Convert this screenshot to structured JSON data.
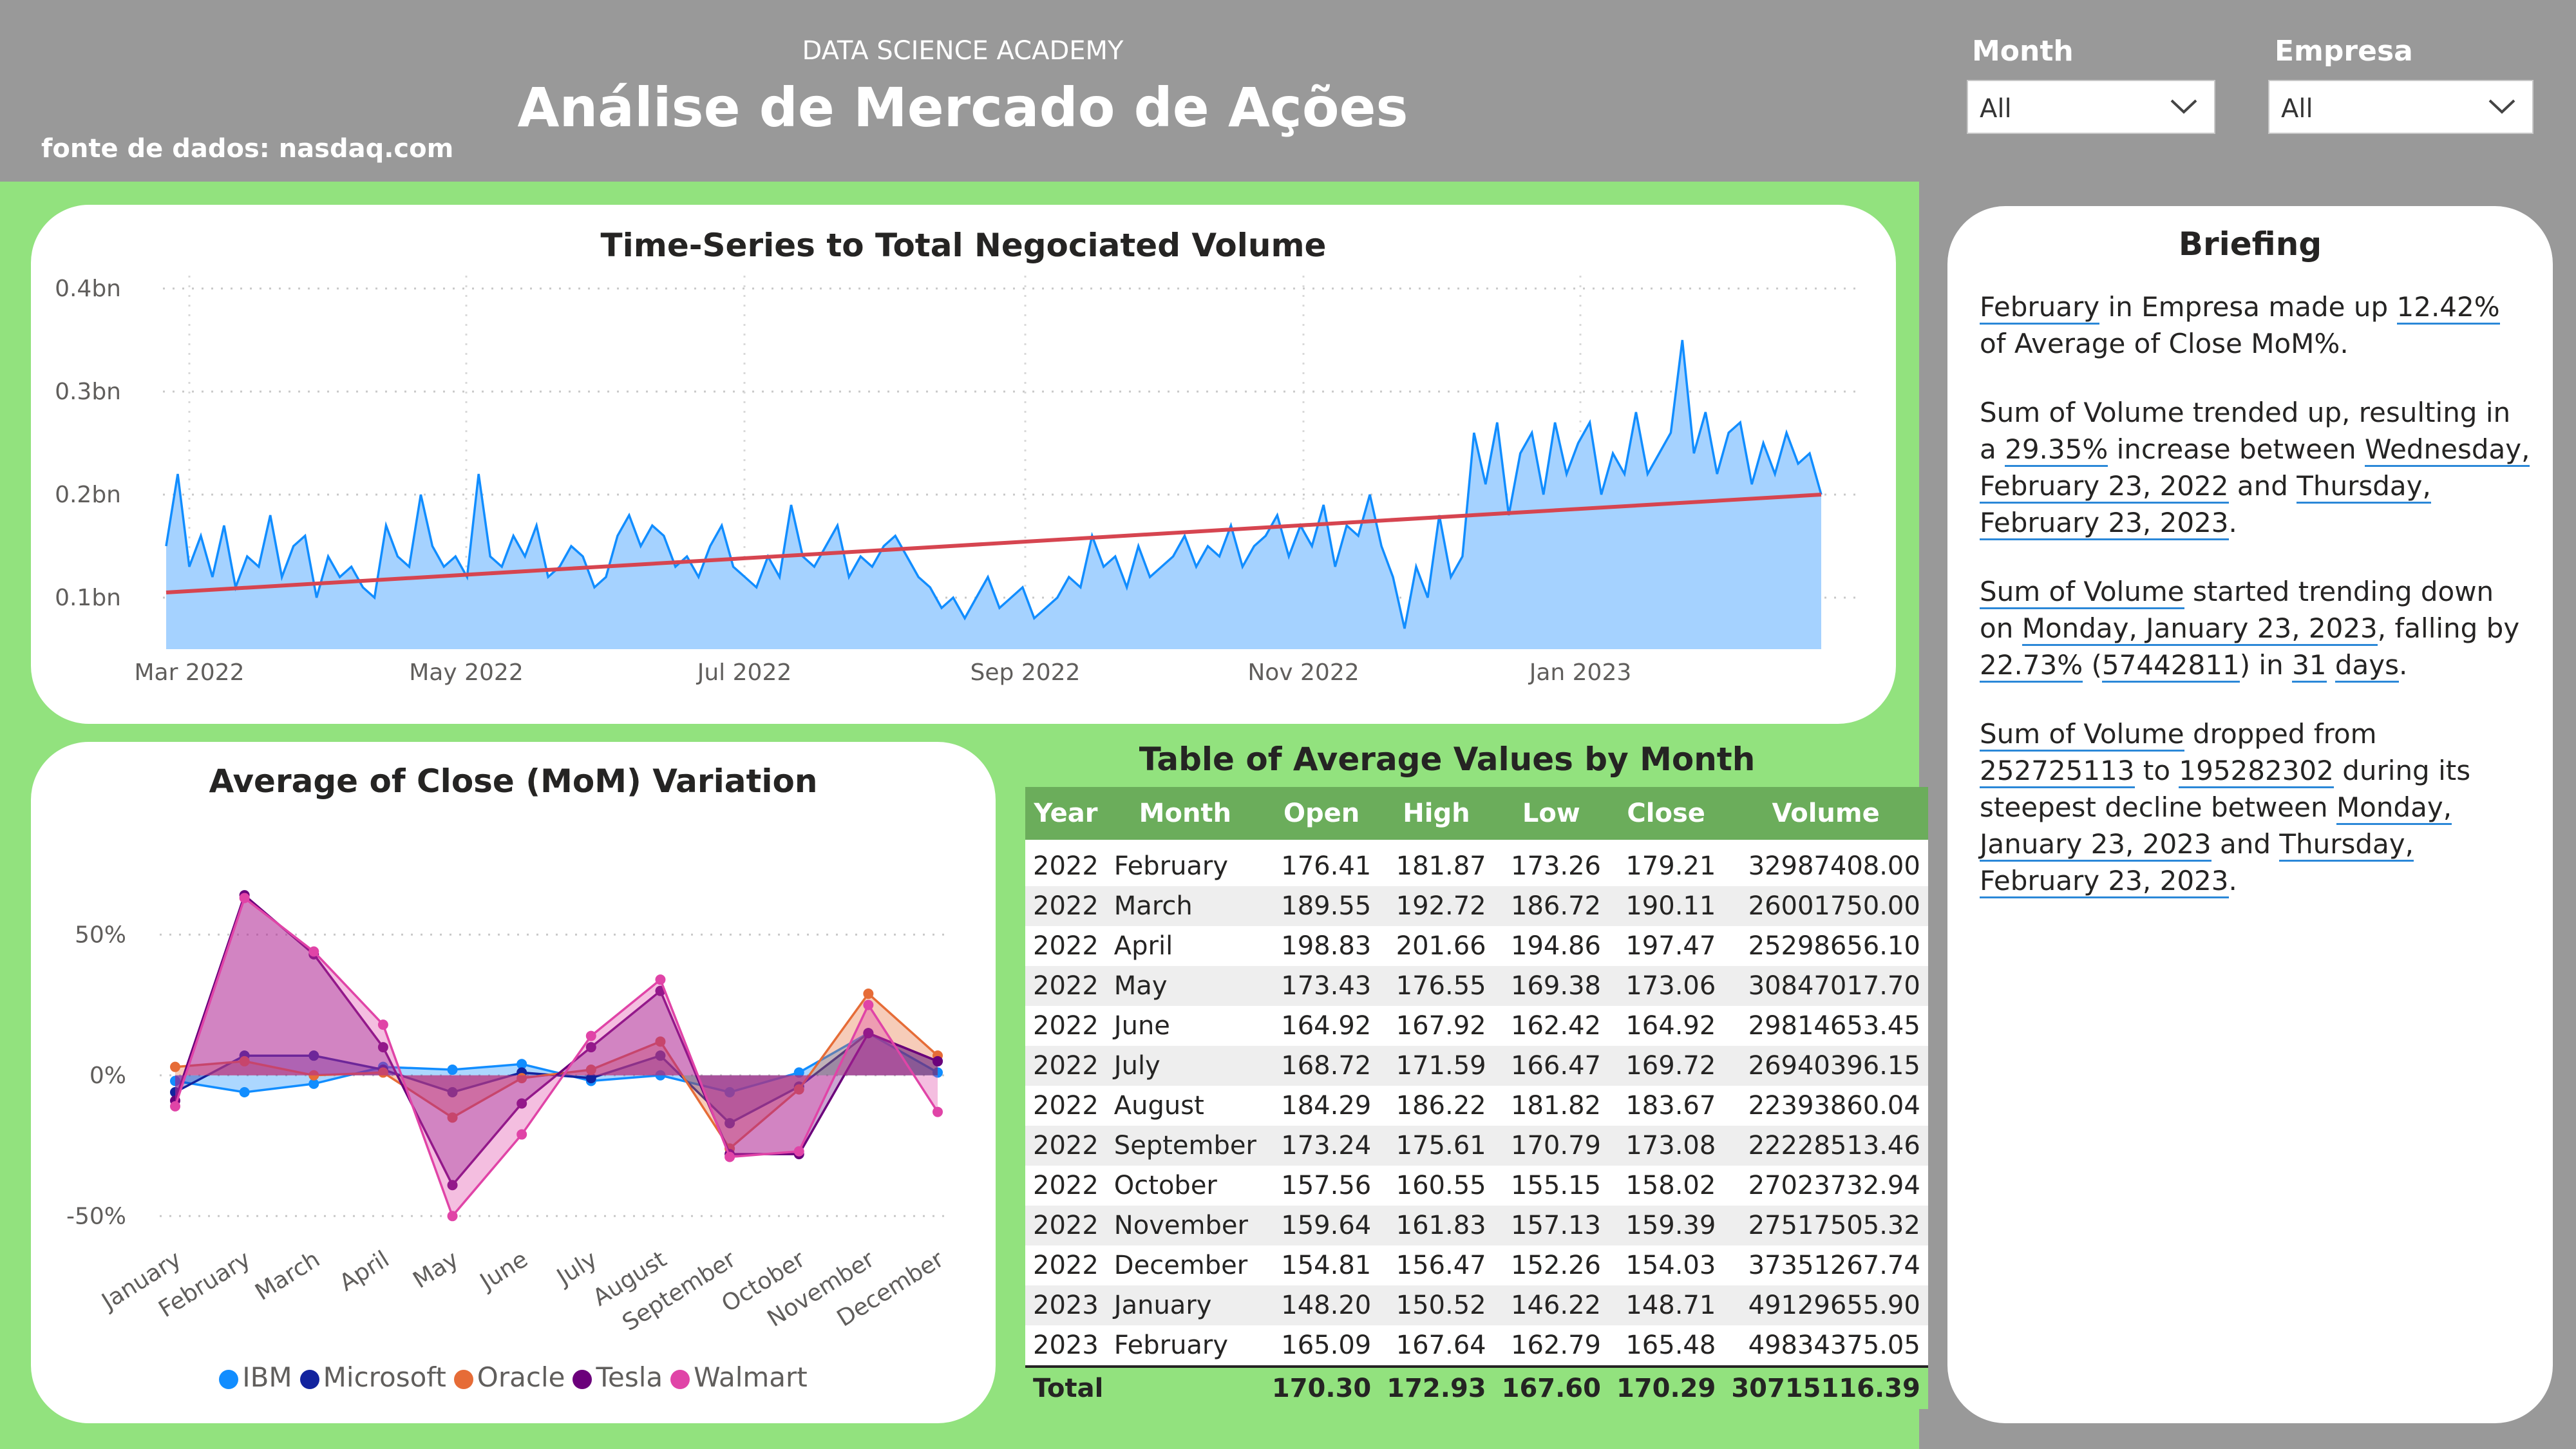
{
  "header": {
    "academy": "DATA SCIENCE ACADEMY",
    "title": "Análise de Mercado de Ações",
    "source": "fonte de dados: nasdaq.com"
  },
  "filters": {
    "month": {
      "label": "Month",
      "value": "All"
    },
    "empresa": {
      "label": "Empresa",
      "value": "All"
    }
  },
  "colors": {
    "background": "#92E27E",
    "panel_gray": "#999999",
    "table_header": "#6BAD5B",
    "volume_line": "#118DFF",
    "volume_fill": "#A5D2FF",
    "trend_line": "#D64550",
    "link_underline": "#2B88D8"
  },
  "volume_chart": {
    "title": "Time-Series to Total Negociated Volume",
    "y_tick_labels": [
      "0.4bn",
      "0.3bn",
      "0.2bn",
      "0.1bn"
    ],
    "x_tick_labels": [
      "Mar 2022",
      "May 2022",
      "Jul 2022",
      "Sep 2022",
      "Nov 2022",
      "Jan 2023"
    ]
  },
  "mom_chart": {
    "title": "Average of Close (MoM) Variation",
    "y_tick_labels": [
      "50%",
      "0%",
      "-50%"
    ],
    "months": [
      "January",
      "February",
      "March",
      "April",
      "May",
      "June",
      "July",
      "August",
      "September",
      "October",
      "November",
      "December"
    ],
    "legend": [
      {
        "name": "IBM",
        "color": "#118DFF"
      },
      {
        "name": "Microsoft",
        "color": "#12239E"
      },
      {
        "name": "Oracle",
        "color": "#E66C37"
      },
      {
        "name": "Tesla",
        "color": "#6B007B"
      },
      {
        "name": "Walmart",
        "color": "#E044A7"
      }
    ]
  },
  "chart_data": [
    {
      "type": "area",
      "title": "Time-Series to Total Negociated Volume",
      "x_range": [
        "2022-02-23",
        "2023-02-23"
      ],
      "ylim_bn": [
        0.05,
        0.4
      ],
      "series": [
        {
          "values_bn_sampled": [
            0.15,
            0.22,
            0.13,
            0.16,
            0.12,
            0.17,
            0.11,
            0.14,
            0.13,
            0.18,
            0.12,
            0.15,
            0.16,
            0.1,
            0.14,
            0.12,
            0.13,
            0.11,
            0.1,
            0.17,
            0.14,
            0.13,
            0.2,
            0.15,
            0.13,
            0.14,
            0.12,
            0.22,
            0.14,
            0.13,
            0.16,
            0.14,
            0.17,
            0.12,
            0.13,
            0.15,
            0.14,
            0.11,
            0.12,
            0.16,
            0.18,
            0.15,
            0.17,
            0.16,
            0.13,
            0.14,
            0.12,
            0.15,
            0.17,
            0.13,
            0.12,
            0.11,
            0.14,
            0.12,
            0.19,
            0.14,
            0.13,
            0.15,
            0.17,
            0.12,
            0.14,
            0.13,
            0.15,
            0.16,
            0.14,
            0.12,
            0.11,
            0.09,
            0.1,
            0.08,
            0.1,
            0.12,
            0.09,
            0.1,
            0.11,
            0.08,
            0.09,
            0.1,
            0.12,
            0.11,
            0.16,
            0.13,
            0.14,
            0.11,
            0.15,
            0.12,
            0.13,
            0.14,
            0.16,
            0.13,
            0.15,
            0.14,
            0.17,
            0.13,
            0.15,
            0.16,
            0.18,
            0.14,
            0.17,
            0.15,
            0.19,
            0.13,
            0.17,
            0.16,
            0.2,
            0.15,
            0.12,
            0.07,
            0.13,
            0.1,
            0.18,
            0.12,
            0.14,
            0.26,
            0.21,
            0.27,
            0.18,
            0.24,
            0.26,
            0.2,
            0.27,
            0.22,
            0.25,
            0.27,
            0.2,
            0.24,
            0.22,
            0.28,
            0.22,
            0.24,
            0.26,
            0.35,
            0.24,
            0.28,
            0.22,
            0.26,
            0.27,
            0.21,
            0.25,
            0.22,
            0.26,
            0.23,
            0.24,
            0.2
          ]
        }
      ],
      "trend": {
        "name": "trend",
        "start_bn": 0.105,
        "end_bn": 0.2
      }
    },
    {
      "type": "line",
      "title": "Average of Close (MoM) Variation",
      "categories": [
        "January",
        "February",
        "March",
        "April",
        "May",
        "June",
        "July",
        "August",
        "September",
        "October",
        "November",
        "December"
      ],
      "ylim": [
        -60,
        75
      ],
      "series": [
        {
          "name": "IBM",
          "color": "#118DFF",
          "values": [
            -2,
            -6,
            -3,
            3,
            2,
            4,
            -2,
            0,
            -6,
            1,
            15,
            1
          ]
        },
        {
          "name": "Microsoft",
          "color": "#12239E",
          "values": [
            -6,
            7,
            7,
            2,
            -6,
            1,
            -1,
            7,
            -17,
            -4,
            15,
            5
          ]
        },
        {
          "name": "Oracle",
          "color": "#E66C37",
          "values": [
            3,
            5,
            0,
            1,
            -15,
            -1,
            2,
            12,
            -26,
            -5,
            29,
            7
          ]
        },
        {
          "name": "Tesla",
          "color": "#6B007B",
          "values": [
            -9,
            64,
            43,
            10,
            -39,
            -10,
            10,
            30,
            -28,
            -28,
            15,
            5
          ]
        },
        {
          "name": "Walmart",
          "color": "#E044A7",
          "values": [
            -11,
            63,
            44,
            18,
            -50,
            -21,
            14,
            34,
            -29,
            -27,
            25,
            -13
          ]
        }
      ]
    }
  ],
  "table": {
    "title": "Table of Average Values by Month",
    "columns": [
      "Year",
      "Month",
      "Open",
      "High",
      "Low",
      "Close",
      "Volume"
    ],
    "rows": [
      [
        "2022",
        "February",
        "176.41",
        "181.87",
        "173.26",
        "179.21",
        "32987408.00"
      ],
      [
        "2022",
        "March",
        "189.55",
        "192.72",
        "186.72",
        "190.11",
        "26001750.00"
      ],
      [
        "2022",
        "April",
        "198.83",
        "201.66",
        "194.86",
        "197.47",
        "25298656.10"
      ],
      [
        "2022",
        "May",
        "173.43",
        "176.55",
        "169.38",
        "173.06",
        "30847017.70"
      ],
      [
        "2022",
        "June",
        "164.92",
        "167.92",
        "162.42",
        "164.92",
        "29814653.45"
      ],
      [
        "2022",
        "July",
        "168.72",
        "171.59",
        "166.47",
        "169.72",
        "26940396.15"
      ],
      [
        "2022",
        "August",
        "184.29",
        "186.22",
        "181.82",
        "183.67",
        "22393860.04"
      ],
      [
        "2022",
        "September",
        "173.24",
        "175.61",
        "170.79",
        "173.08",
        "22228513.46"
      ],
      [
        "2022",
        "October",
        "157.56",
        "160.55",
        "155.15",
        "158.02",
        "27023732.94"
      ],
      [
        "2022",
        "November",
        "159.64",
        "161.83",
        "157.13",
        "159.39",
        "27517505.32"
      ],
      [
        "2022",
        "December",
        "154.81",
        "156.47",
        "152.26",
        "154.03",
        "37351267.74"
      ],
      [
        "2023",
        "January",
        "148.20",
        "150.52",
        "146.22",
        "148.71",
        "49129655.90"
      ],
      [
        "2023",
        "February",
        "165.09",
        "167.64",
        "162.79",
        "165.48",
        "49834375.05"
      ]
    ],
    "total": {
      "label": "Total",
      "open": "170.30",
      "high": "172.93",
      "low": "167.60",
      "close": "170.29",
      "volume": "30715116.39"
    }
  },
  "briefing": {
    "title": "Briefing",
    "p1": {
      "a": "February",
      "b": " in Empresa  made up ",
      "c": "12.42%",
      "d": " of Average of Close MoM%."
    },
    "p2": {
      "a": "Sum of Volume trended up, resulting in a ",
      "b": "29.35%",
      "c": " increase between ",
      "d": "Wednesday, February 23, 2022",
      "e": " and ",
      "f": "Thursday, February 23, 2023",
      "g": "."
    },
    "p3": {
      "a": "Sum of Volume",
      "b": " started trending down on ",
      "c": "Monday, January 23, 2023",
      "d": ", falling by ",
      "e": "22.73%",
      "f": " (",
      "g": "57442811",
      "h": ") in ",
      "i": "31",
      "j": " ",
      "k": "days",
      "l": "."
    },
    "p4": {
      "a": "Sum of Volume",
      "b": " dropped from ",
      "c": "252725113",
      "d": " to ",
      "e": "195282302",
      "f": " during its steepest decline between ",
      "g": "Monday, January 23, 2023",
      "h": " and ",
      "i": "Thursday, February 23, 2023",
      "j": "."
    }
  }
}
